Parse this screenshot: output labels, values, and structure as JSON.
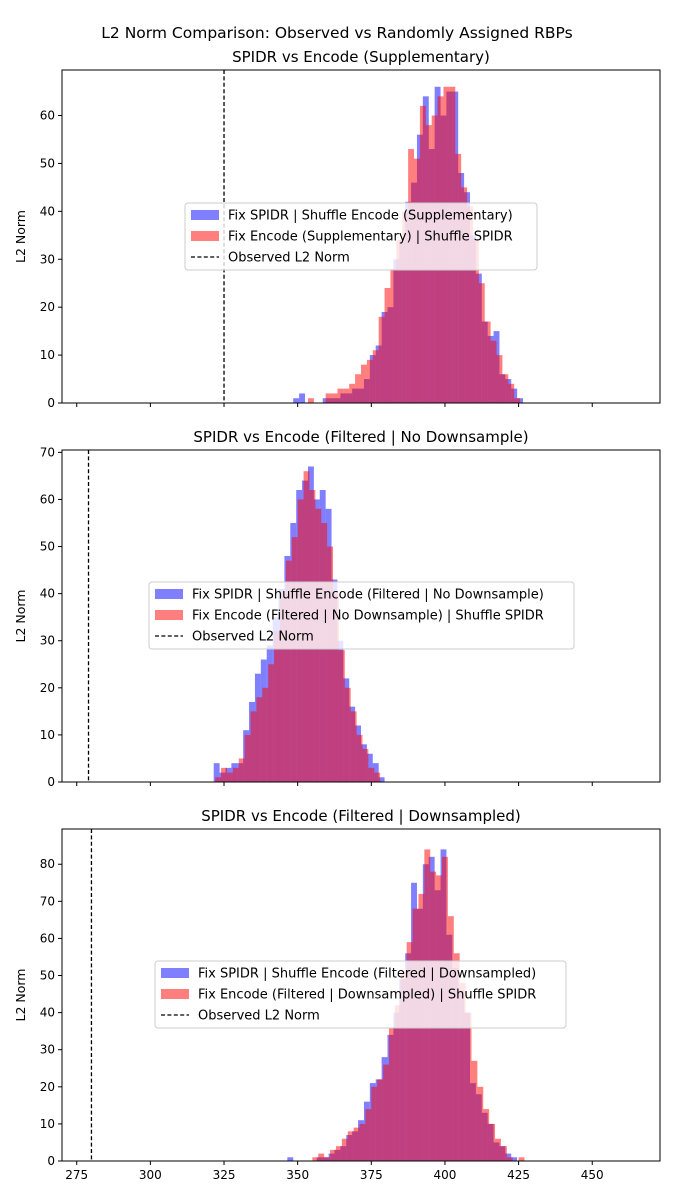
{
  "suptitle": "L2 Norm Comparison: Observed vs Randomly Assigned RBPs",
  "colors": {
    "shuffle_encode": "#0000ff",
    "shuffle_spidr": "#ff0000",
    "observed": "#000000"
  },
  "chart_data": [
    {
      "type": "histogram",
      "title": "SPIDR vs Encode (Supplementary)",
      "xlabel": "",
      "ylabel": "L2 Norm",
      "xlim": [
        270,
        473
      ],
      "ylim": [
        0,
        69.5
      ],
      "yticks": [
        0,
        10,
        20,
        30,
        40,
        50,
        60
      ],
      "xticks": [
        275,
        300,
        325,
        350,
        375,
        400,
        425,
        450
      ],
      "show_xtick_labels": false,
      "observed_l2_norm": 325,
      "legend": [
        "Fix SPIDR | Shuffle Encode (Supplementary)",
        "Fix Encode (Supplementary) | Shuffle SPIDR",
        "Observed L2 Norm"
      ],
      "series": [
        {
          "name": "Fix SPIDR | Shuffle Encode (Supplementary)",
          "color": "#0000ff",
          "bin_start": 348.5,
          "bin_width": 2.0,
          "values": [
            1,
            2,
            0,
            0,
            0,
            1,
            1,
            1,
            2,
            2,
            3,
            3,
            5,
            10,
            12,
            19,
            20,
            30,
            34,
            42,
            46,
            56,
            64,
            53,
            66,
            60,
            65,
            65,
            48,
            44,
            35,
            27,
            17,
            14,
            15,
            6,
            5,
            3,
            1,
            0,
            0,
            0
          ]
        },
        {
          "name": "Fix Encode (Supplementary) | Shuffle SPIDR",
          "color": "#ff0000",
          "bin_start": 349.5,
          "bin_width": 2.0,
          "values": [
            0,
            0,
            1,
            0,
            0,
            2,
            2,
            3,
            3,
            4,
            6,
            8,
            9,
            11,
            18,
            24,
            28,
            34,
            40,
            53,
            51,
            62,
            58,
            60,
            64,
            66,
            66,
            52,
            45,
            41,
            34,
            25,
            17,
            13,
            10,
            6,
            4,
            1,
            0,
            0,
            0,
            0
          ]
        }
      ]
    },
    {
      "type": "histogram",
      "title": "SPIDR vs Encode (Filtered | No Downsample)",
      "xlabel": "",
      "ylabel": "L2 Norm",
      "xlim": [
        270,
        473
      ],
      "ylim": [
        0,
        70.5
      ],
      "yticks": [
        0,
        10,
        20,
        30,
        40,
        50,
        60,
        70
      ],
      "xticks": [
        275,
        300,
        325,
        350,
        375,
        400,
        425,
        450
      ],
      "show_xtick_labels": false,
      "observed_l2_norm": 279,
      "legend": [
        "Fix SPIDR | Shuffle Encode (Filtered | No Downsample)",
        "Fix Encode (Filtered | No Downsample) | Shuffle SPIDR",
        "Observed L2 Norm"
      ],
      "series": [
        {
          "name": "Fix SPIDR | Shuffle Encode (Filtered | No Downsample)",
          "color": "#0000ff",
          "bin_start": 321.5,
          "bin_width": 2.0,
          "values": [
            4,
            2,
            3,
            4,
            4,
            11,
            17,
            23,
            26,
            29,
            35,
            41,
            48,
            55,
            62,
            64,
            67,
            60,
            62,
            58,
            43,
            30,
            22,
            16,
            12,
            8,
            6,
            4,
            1,
            0
          ]
        },
        {
          "name": "Fix Encode (Filtered | No Downsample) | Shuffle SPIDR",
          "color": "#ff0000",
          "bin_start": 322.0,
          "bin_width": 2.0,
          "values": [
            1,
            3,
            2,
            3,
            5,
            10,
            15,
            18,
            20,
            25,
            32,
            40,
            47,
            52,
            60,
            66,
            62,
            58,
            55,
            50,
            40,
            28,
            20,
            15,
            10,
            7,
            3,
            2,
            0,
            0
          ]
        }
      ]
    },
    {
      "type": "histogram",
      "title": "SPIDR vs Encode (Filtered | Downsampled)",
      "xlabel": "",
      "ylabel": "L2 Norm",
      "xlim": [
        270,
        473
      ],
      "ylim": [
        0,
        89.5
      ],
      "yticks": [
        0,
        10,
        20,
        30,
        40,
        50,
        60,
        70,
        80
      ],
      "xticks": [
        275,
        300,
        325,
        350,
        375,
        400,
        425,
        450
      ],
      "show_xtick_labels": true,
      "observed_l2_norm": 280,
      "legend": [
        "Fix SPIDR | Shuffle Encode (Filtered | Downsampled)",
        "Fix Encode (Filtered | Downsampled) | Shuffle SPIDR",
        "Observed L2 Norm"
      ],
      "series": [
        {
          "name": "Fix SPIDR | Shuffle Encode (Filtered | Downsampled)",
          "color": "#0000ff",
          "bin_start": 346.5,
          "bin_width": 2.0,
          "values": [
            1,
            0,
            0,
            0,
            0,
            1,
            1,
            2,
            3,
            4,
            7,
            8,
            11,
            16,
            21,
            22,
            28,
            34,
            40,
            49,
            56,
            75,
            68,
            80,
            82,
            73,
            84,
            61,
            52,
            46,
            40,
            21,
            18,
            13,
            10,
            5,
            4,
            2,
            1,
            0
          ]
        },
        {
          "name": "Fix Encode (Filtered | Downsampled) | Shuffle SPIDR",
          "color": "#ff0000",
          "bin_start": 347.0,
          "bin_width": 2.0,
          "values": [
            0,
            0,
            0,
            0,
            1,
            2,
            1,
            3,
            4,
            6,
            8,
            9,
            10,
            14,
            20,
            22,
            26,
            36,
            42,
            51,
            59,
            68,
            72,
            84,
            78,
            77,
            82,
            66,
            56,
            48,
            40,
            27,
            20,
            14,
            10,
            6,
            4,
            1,
            0,
            1
          ]
        }
      ]
    }
  ]
}
